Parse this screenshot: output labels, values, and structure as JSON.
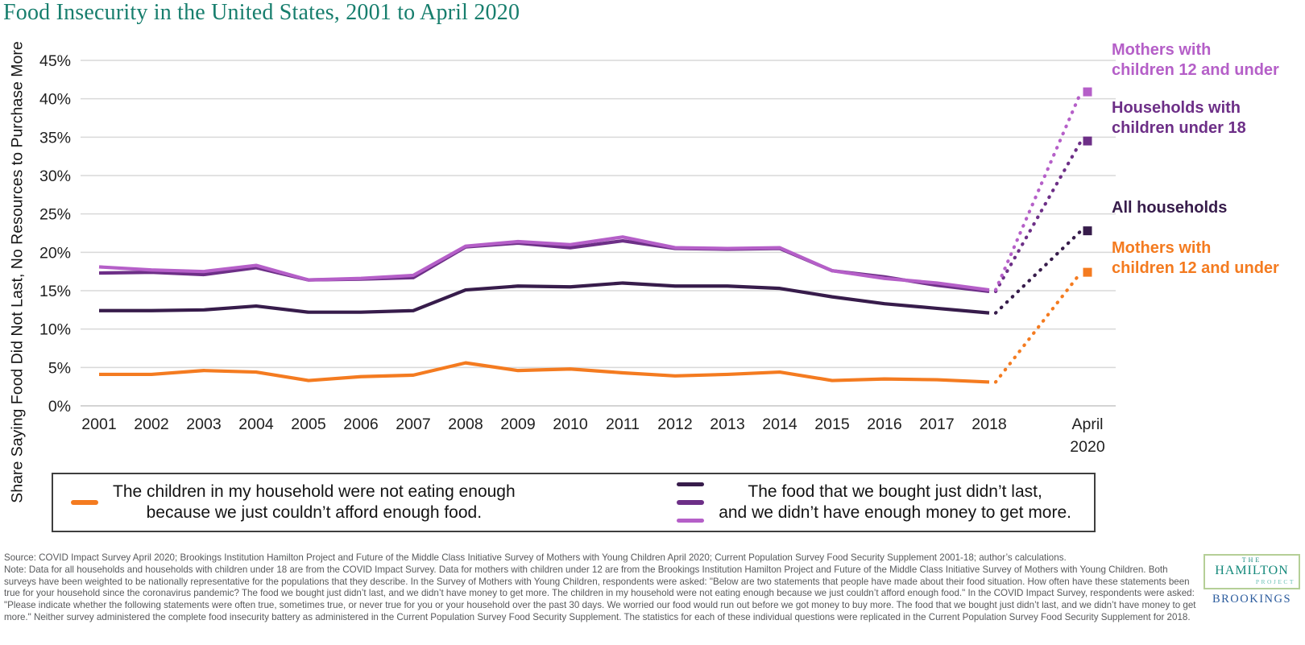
{
  "title": "Food Insecurity in the United States, 2001 to April 2020",
  "chart_data": {
    "type": "line",
    "title": "Food Insecurity in the United States, 2001 to April 2020",
    "ylabel": "Share Saying Food Did Not Last, No Resources to Purchase More",
    "ylim": [
      0,
      45
    ],
    "ytick_step": 5,
    "ytick_suffix": "%",
    "grid": true,
    "legend_position": "bottom",
    "x_labels": [
      "2001",
      "2002",
      "2003",
      "2004",
      "2005",
      "2006",
      "2007",
      "2008",
      "2009",
      "2010",
      "2011",
      "2012",
      "2013",
      "2014",
      "2015",
      "2016",
      "2017",
      "2018",
      "April 2020"
    ],
    "series": [
      {
        "id": "mothers-children-12-under-food-didnt-last",
        "name": "Mothers with children 12 and under",
        "label_lines": [
          "Mothers with",
          "children 12 and under"
        ],
        "color": "#b55fc8",
        "statement": "The food that we bought just didn’t last, and we didn’t have enough money to get more.",
        "values": [
          18.1,
          17.7,
          17.5,
          18.3,
          16.4,
          16.6,
          17.0,
          20.8,
          21.4,
          21.0,
          22.0,
          20.6,
          20.5,
          20.6,
          17.6,
          16.6,
          16.0,
          15.1
        ],
        "april_2020": 40.9
      },
      {
        "id": "households-with-children-under-18",
        "name": "Households with children under 18",
        "label_lines": [
          "Households with",
          "children under 18"
        ],
        "color": "#6d2f87",
        "statement": "The food that we bought just didn’t last, and we didn’t have enough money to get more.",
        "values": [
          17.3,
          17.4,
          17.1,
          18.0,
          16.4,
          16.5,
          16.7,
          20.7,
          21.2,
          20.6,
          21.5,
          20.5,
          20.4,
          20.5,
          17.6,
          16.8,
          15.7,
          14.9
        ],
        "april_2020": 34.5
      },
      {
        "id": "all-households",
        "name": "All households",
        "label_lines": [
          "All households"
        ],
        "color": "#371c4b",
        "statement": "The food that we bought just didn’t last, and we didn’t have enough money to get more.",
        "values": [
          12.4,
          12.4,
          12.5,
          13.0,
          12.2,
          12.2,
          12.4,
          15.1,
          15.6,
          15.5,
          16.0,
          15.6,
          15.6,
          15.3,
          14.2,
          13.3,
          12.7,
          12.1
        ],
        "april_2020": 22.8
      },
      {
        "id": "mothers-children-12-under-not-eating-enough",
        "name": "Mothers with children 12 and under",
        "label_lines": [
          "Mothers with",
          "children 12 and under"
        ],
        "color": "#f47b20",
        "statement": "The children in my household were not eating enough because we just couldn’t afford enough food.",
        "values": [
          4.1,
          4.1,
          4.6,
          4.4,
          3.3,
          3.8,
          4.0,
          5.6,
          4.6,
          4.8,
          4.3,
          3.9,
          4.1,
          4.4,
          3.3,
          3.5,
          3.4,
          3.1
        ],
        "april_2020": 17.4
      }
    ]
  },
  "legend": {
    "entries": [
      {
        "color": "#f47b20",
        "lines": [
          "The children in my household were not eating enough",
          "because we just couldn’t afford enough food."
        ]
      },
      {
        "colors": [
          "#371c4b",
          "#6d2f87",
          "#b55fc8"
        ],
        "lines": [
          "The food that we bought just didn’t last,",
          "and we didn’t have enough money to get more."
        ]
      }
    ]
  },
  "footer": {
    "source": "Source: COVID Impact Survey April 2020; Brookings Institution Hamilton Project and Future of the Middle Class Initiative Survey of Mothers with Young Children April 2020; Current Population Survey Food Security Supplement 2001-18; author’s calculations.",
    "note": "Note: Data for all households and households with children under 18 are from the COVID Impact Survey. Data for mothers with children under 12 are from the Brookings Institution Hamilton Project and Future of the Middle Class Initiative Survey of Mothers with Young Children. Both surveys have been weighted to be nationally representative for the populations that they describe. In the Survey of Mothers with Young Children, respondents were asked: \"Below are two statements that people have made about their food situation. How often have these statements been true for your household since the coronavirus pandemic? The food we bought just didn’t last, and we didn’t have money to get more. The children in my household were not eating enough because we just couldn’t afford enough food.\" In the COVID Impact Survey, respondents were asked: \"Please indicate whether the following statements were often true, sometimes true, or never true for you or your household over the past 30 days. We worried our food would run out before we got money to buy more. The food that we bought just didn’t last, and we didn’t have money to get more.\" Neither survey administered the complete food insecurity battery as administered in the Current Population Survey Food Security Supplement. The statistics for each of these individual questions were replicated in the Current Population Survey Food Security Supplement for 2018."
  },
  "logo": {
    "the": "THE",
    "hamilton": "HAMILTON",
    "project": "PROJECT",
    "brookings": "BROOKINGS"
  },
  "colors": {
    "title": "#177e6d",
    "gridline": "#d9d9d9",
    "axis_line": "#c6c6c6",
    "tick_text": "#1f1f1f",
    "footer_text": "#58595b"
  }
}
